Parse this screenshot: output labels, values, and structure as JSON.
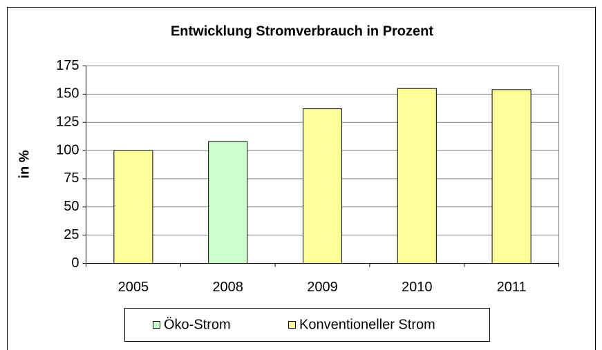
{
  "chart_data": {
    "type": "bar",
    "title": "Entwicklung Stromverbrauch in Prozent",
    "y_label": "in %",
    "categories": [
      "2005",
      "2008",
      "2009",
      "2010",
      "2011"
    ],
    "series": [
      {
        "name": "Öko-Strom",
        "color": "#ccffcc",
        "values": [
          null,
          108,
          null,
          null,
          null
        ]
      },
      {
        "name": "Konventioneller Strom",
        "color": "#ffff99",
        "values": [
          100,
          null,
          137,
          155,
          154
        ]
      }
    ],
    "ylim": [
      0,
      175
    ],
    "yticks": [
      0,
      25,
      50,
      75,
      100,
      125,
      150,
      175
    ],
    "grid": true
  }
}
